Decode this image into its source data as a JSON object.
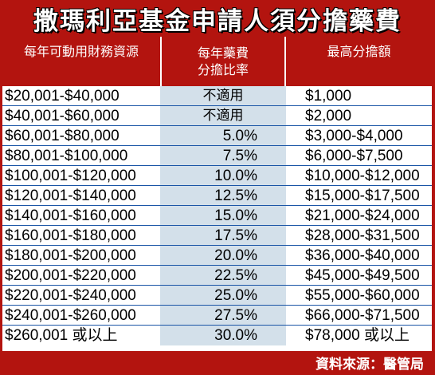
{
  "title": "撒瑪利亞基金申請人須分擔藥費",
  "headers": {
    "col1": "每年可動用財務資源",
    "col2_line1": "每年藥費",
    "col2_line2": "分擔比率",
    "col3": "最高分擔額"
  },
  "rows": [
    {
      "range": "$20,001-$40,000",
      "rate": "不適用",
      "max": "$1,000"
    },
    {
      "range": "$40,001-$60,000",
      "rate": "不適用",
      "max": "$2,000"
    },
    {
      "range": "$60,001-$80,000",
      "rate": "5.0%",
      "max": "$3,000-$4,000"
    },
    {
      "range": "$80,001-$100,000",
      "rate": "7.5%",
      "max": "$6,000-$7,500"
    },
    {
      "range": "$100,001-$120,000",
      "rate": "10.0%",
      "max": "$10,000-$12,000"
    },
    {
      "range": "$120,001-$140,000",
      "rate": "12.5%",
      "max": "$15,000-$17,500"
    },
    {
      "range": "$140,001-$160,000",
      "rate": "15.0%",
      "max": "$21,000-$24,000"
    },
    {
      "range": "$160,001-$180,000",
      "rate": "17.5%",
      "max": "$28,000-$31,500"
    },
    {
      "range": "$180,001-$200,000",
      "rate": "20.0%",
      "max": "$36,000-$40,000"
    },
    {
      "range": "$200,001-$220,000",
      "rate": "22.5%",
      "max": "$45,000-$49,500"
    },
    {
      "range": "$220,001-$240,000",
      "rate": "25.0%",
      "max": "$55,000-$60,000"
    },
    {
      "range": "$240,001-$260,000",
      "rate": "27.5%",
      "max": "$66,000-$71,500"
    },
    {
      "range": "$260,001 或以上",
      "rate": "30.0%",
      "max": "$78,000 或以上"
    }
  ],
  "source": "資料來源：醫管局"
}
